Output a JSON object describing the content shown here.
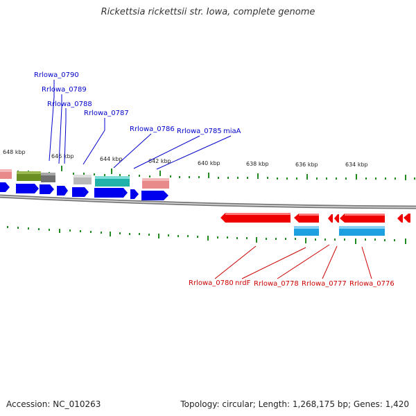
{
  "title": "Rickettsia rickettsii str. Iowa, complete genome",
  "accession": "Accession: NC_010263",
  "summary": "Topology: circular; Length: 1,268,175 bp; Genes: 1,420",
  "colors": {
    "forward_label": "#0000cc",
    "reverse_label": "#cc0000",
    "cds_forward": "#0000ee",
    "cds_reverse": "#ee0000",
    "tick": "#228b22",
    "backbone": "#888888"
  },
  "scale_labels": [
    "648 kbp",
    "646 kbp",
    "644 kbp",
    "642 kbp",
    "640 kbp",
    "638 kbp",
    "636 kbp",
    "634 kbp"
  ],
  "forward_genes": [
    "Rrlowa_0790",
    "Rrlowa_0789",
    "Rrlowa_0788",
    "Rrlowa_0787",
    "Rrlowa_0786",
    "Rrlowa_0785",
    "miaA"
  ],
  "reverse_genes": [
    "Rrlowa_0780",
    "nrdF",
    "Rrlowa_0778",
    "Rrlowa_0777",
    "Rrlowa_0776"
  ]
}
